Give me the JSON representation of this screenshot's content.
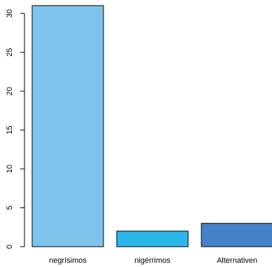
{
  "chart_data": {
    "type": "bar",
    "title": "",
    "xlabel": "",
    "ylabel": "",
    "categories": [
      "negrísimos",
      "nigérrimos",
      "Alternativen"
    ],
    "values": [
      31,
      2,
      3
    ],
    "colors": [
      "#7ec3eb",
      "#2bb6e9",
      "#4682c8"
    ],
    "ylim": [
      0,
      31
    ],
    "yticks": [
      0,
      5,
      10,
      15,
      20,
      25,
      30
    ],
    "ytick_labels": [
      "0",
      "5",
      "10",
      "15",
      "20",
      "25",
      "30"
    ],
    "grid": false,
    "legend": "none"
  }
}
